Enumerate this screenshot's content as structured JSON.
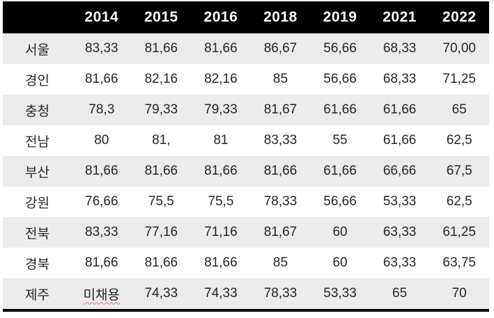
{
  "chart_data": {
    "type": "table",
    "title": "",
    "columns": [
      "",
      "2014",
      "2015",
      "2016",
      "2018",
      "2019",
      "2021",
      "2022"
    ],
    "rows": [
      {
        "region": "서울",
        "values": [
          "83,33",
          "81,66",
          "81,66",
          "86,67",
          "56,66",
          "68,33",
          "70,00"
        ]
      },
      {
        "region": "경인",
        "values": [
          "81,66",
          "82,16",
          "82,16",
          "85",
          "56,66",
          "68,33",
          "71,25"
        ]
      },
      {
        "region": "충청",
        "values": [
          "78,3",
          "79,33",
          "79,33",
          "81,67",
          "61,66",
          "61,66",
          "65"
        ]
      },
      {
        "region": "전남",
        "values": [
          "80",
          "81,",
          "81",
          "83,33",
          "55",
          "61,66",
          "62,5"
        ]
      },
      {
        "region": "부산",
        "values": [
          "81,66",
          "81,66",
          "81,66",
          "81,66",
          "61,66",
          "66,66",
          "67,5"
        ]
      },
      {
        "region": "강원",
        "values": [
          "76,66",
          "75,5",
          "75,5",
          "78,33",
          "56,66",
          "53,33",
          "62,5"
        ]
      },
      {
        "region": "전북",
        "values": [
          "83,33",
          "77,16",
          "71,16",
          "81,67",
          "60",
          "63,33",
          "61,25"
        ]
      },
      {
        "region": "경북",
        "values": [
          "81,66",
          "81,66",
          "81,66",
          "85",
          "60",
          "63,33",
          "63,75"
        ]
      },
      {
        "region": "제주",
        "values": [
          "미채용",
          "74,33",
          "74,33",
          "78,33",
          "53,33",
          "65",
          "70"
        ]
      }
    ],
    "annotations": [
      "미채용 has a red wavy spellcheck underline"
    ],
    "layout": {
      "header_style": "solid black band with white bold year labels",
      "row_striping": "alternating rows, odd rows light gray starting with first data row",
      "bottom_rule": "thick black line under last row",
      "grid": "no inner cell borders"
    }
  },
  "colors": {
    "header_bg": "#000000",
    "header_text": "#ffffff",
    "stripe_bg": "#ebebeb",
    "row_bg": "#ffffff",
    "cell_text": "#262626",
    "bottom_border": "#000000",
    "spellcheck_squiggle": "#ff6a5e"
  }
}
